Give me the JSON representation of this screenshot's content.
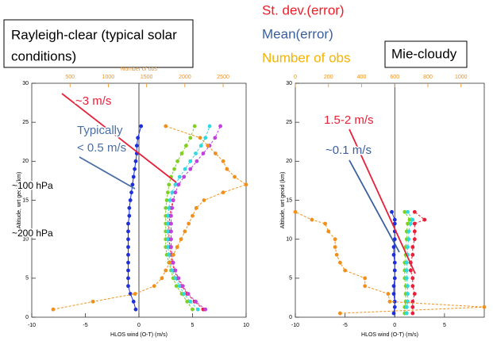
{
  "legend": [
    {
      "label": "St. dev.(error)",
      "color": "#ee1c25"
    },
    {
      "label": "Mean(error)",
      "color": "#3a5fa0"
    },
    {
      "label": "Number of obs",
      "color": "#f5b300"
    }
  ],
  "chart_data": [
    {
      "type": "scatter",
      "title": [
        "Rayleigh-clear (typical solar",
        "conditions)"
      ],
      "x_label": "HLOS wind (O-T) (m/s)",
      "y_label": "Altitude, wrt geoid (km)",
      "x2_label": "Number of obs",
      "xlim": [
        -10,
        10
      ],
      "xticks": [
        -10,
        -5,
        0,
        5,
        10
      ],
      "x2lim": [
        0,
        2800
      ],
      "x2ticks": [
        500,
        1000,
        1500,
        2000,
        2500
      ],
      "ylim": [
        0,
        30
      ],
      "yticks": [
        0,
        5,
        10,
        15,
        20,
        25,
        30
      ],
      "y": [
        1,
        2,
        3,
        4,
        5,
        6,
        7,
        8,
        9,
        10,
        11,
        12,
        13,
        14,
        15,
        16,
        17,
        18,
        19,
        20,
        21,
        22,
        23,
        24.5
      ],
      "series": [
        {
          "name": "Mean(error)",
          "color": "#1f2fd8",
          "values": [
            -0.3,
            -0.5,
            -0.8,
            -1,
            -1,
            -1,
            -1,
            -1,
            -1,
            -1,
            -1,
            -1,
            -0.9,
            -0.9,
            -0.8,
            -0.7,
            -0.6,
            -0.5,
            -0.4,
            -0.3,
            -0.2,
            -0.2,
            -0.1,
            0.2
          ]
        },
        {
          "name": "St. dev.(error)",
          "color": "#e8203a",
          "values": [
            6,
            5.2,
            4.5,
            4,
            3.6,
            3.3,
            3.1,
            3,
            2.9,
            2.8,
            2.8,
            2.8,
            2.9,
            3,
            3.2,
            null,
            null,
            null,
            null,
            null,
            null,
            null,
            null,
            null
          ]
        },
        {
          "color": "#7fd020",
          "values": [
            5,
            4.5,
            4,
            3.5,
            3.2,
            3,
            2.8,
            2.6,
            2.5,
            2.5,
            2.5,
            2.5,
            2.5,
            2.5,
            2.6,
            2.7,
            2.8,
            3,
            3.3,
            3.6,
            4,
            4.4,
            4.8,
            5.2
          ]
        },
        {
          "color": "#30d8e0",
          "values": [
            5.5,
            4.8,
            4.2,
            3.8,
            3.4,
            3.1,
            2.9,
            2.8,
            2.7,
            2.7,
            2.7,
            2.7,
            2.7,
            2.8,
            2.9,
            3.1,
            3.4,
            3.8,
            4.3,
            4.8,
            5.3,
            5.8,
            6.2,
            6.6
          ]
        },
        {
          "color": "#c040e0",
          "values": [
            6.2,
            5.3,
            4.6,
            4.1,
            3.7,
            3.4,
            3.2,
            3.1,
            3,
            3,
            3,
            3,
            3,
            3.1,
            3.2,
            3.4,
            3.7,
            4.2,
            4.8,
            5.4,
            6,
            6.6,
            7.1,
            7.6
          ]
        },
        {
          "name": "Number of obs",
          "color": "#f0901a",
          "axis": "x2",
          "values": [
            280,
            800,
            1350,
            1600,
            1700,
            1750,
            1800,
            1850,
            1900,
            1950,
            2000,
            2050,
            2100,
            2150,
            2250,
            2500,
            2800,
            2650,
            2550,
            2500,
            2400,
            2300,
            2200,
            1750
          ]
        }
      ],
      "annotations": [
        {
          "text": [
            "~3 m/s"
          ],
          "color": "#e8203a"
        },
        {
          "text": [
            "Typically",
            "< 0.5 m/s"
          ],
          "color": "#4a6fa5"
        },
        {
          "text": [
            "~100 hPa"
          ],
          "color": "#000000"
        },
        {
          "text": [
            "~200 hPa"
          ],
          "color": "#000000"
        }
      ]
    },
    {
      "type": "scatter",
      "title": [
        "Mie-cloudy"
      ],
      "x_label": "HLOS wind (O-T) (m/s)",
      "y_label": "Altitude, wrt geoid (km)",
      "xlim": [
        -10,
        9
      ],
      "xticks": [
        -10,
        -5,
        0,
        5
      ],
      "x2lim": [
        0,
        1140
      ],
      "x2ticks": [
        0,
        200,
        400,
        600,
        800,
        1000
      ],
      "ylim": [
        0,
        30
      ],
      "yticks": [
        0,
        5,
        10,
        15,
        20,
        25,
        30
      ],
      "y": [
        0.5,
        1.3,
        2,
        3,
        4,
        5,
        6,
        7,
        8,
        9,
        10,
        11,
        12,
        12.5,
        13.5
      ],
      "series": [
        {
          "color": "#1f2fd8",
          "values": [
            -0.1,
            0,
            0,
            -0.1,
            -0.1,
            0,
            0,
            0,
            -0.1,
            -0.1,
            0,
            0,
            0,
            0,
            -0.3
          ]
        },
        {
          "color": "#e8203a",
          "values": [
            1.8,
            1.8,
            1.8,
            2,
            1.8,
            1.8,
            1.6,
            1.6,
            1.8,
            1.8,
            2,
            2,
            2,
            3,
            2
          ]
        },
        {
          "color": "#7fd020",
          "values": [
            1,
            1,
            1.1,
            1.1,
            1.1,
            1,
            1,
            1,
            1.1,
            1.1,
            1.2,
            1.2,
            1.3,
            1.5,
            1
          ]
        },
        {
          "color": "#30d8e0",
          "values": [
            1.2,
            1.2,
            1.3,
            1.3,
            1.3,
            1.2,
            1.2,
            1.2,
            1.3,
            1.3,
            1.4,
            1.4,
            1.6,
            1.8,
            1.3
          ]
        },
        {
          "color": "#f0901a",
          "axis": "x2",
          "values": [
            270,
            1140,
            570,
            560,
            420,
            420,
            300,
            270,
            250,
            240,
            240,
            200,
            180,
            100,
            0
          ]
        }
      ],
      "annotations": [
        {
          "text": [
            "1.5-2 m/s"
          ],
          "color": "#e8203a"
        },
        {
          "text": [
            "~0.1 m/s"
          ],
          "color": "#3a5fa0"
        }
      ]
    }
  ]
}
